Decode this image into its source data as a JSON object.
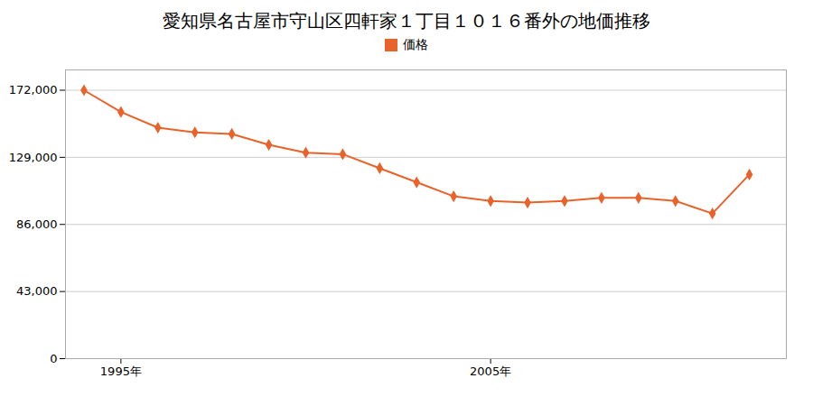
{
  "chart_data": {
    "type": "line",
    "title": "愛知県名古屋市守山区四軒家１丁目１０１６番外の地価推移",
    "x": [
      1994,
      1995,
      1996,
      1997,
      1998,
      1999,
      2000,
      2001,
      2002,
      2003,
      2004,
      2005,
      2006,
      2007,
      2008,
      2009,
      2010,
      2011,
      2012
    ],
    "series": [
      {
        "name": "価格",
        "color": "#e8622a",
        "marker": "diamond",
        "values": [
          172000,
          158000,
          148000,
          145000,
          144000,
          137000,
          132000,
          131000,
          122000,
          113000,
          104000,
          101000,
          100000,
          101000,
          103000,
          103000,
          101000,
          93000,
          118000
        ]
      }
    ],
    "xlim": [
      1993.5,
      2013
    ],
    "xticks": [
      {
        "value": 1995,
        "label": "1995年"
      },
      {
        "value": 2005,
        "label": "2005年"
      }
    ],
    "ylim": [
      0,
      185000
    ],
    "yticks": [
      0,
      {
        "value": 43000,
        "label": "43,000"
      },
      {
        "value": 86000,
        "label": "86,000"
      },
      {
        "value": 129000,
        "label": "129,000"
      },
      {
        "value": 172000,
        "label": "172,000"
      }
    ],
    "grid": true,
    "legend": "top"
  }
}
